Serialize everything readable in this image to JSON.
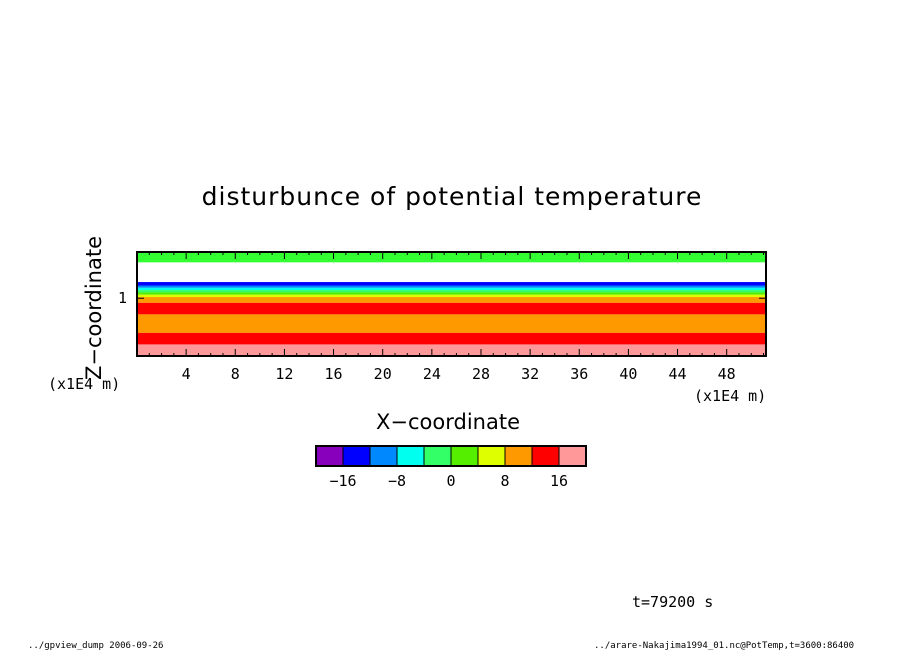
{
  "chart_data": {
    "type": "heatmap",
    "title": "disturbunce of potential temperature",
    "xlabel": "X−coordinate",
    "ylabel": "Z−coordinate",
    "x_unit": "(x1E4 m)",
    "y_unit": "(x1E4 m)",
    "xlim": [
      0,
      51.2
    ],
    "ylim": [
      0,
      1.8
    ],
    "x_ticks": [
      4,
      8,
      12,
      16,
      20,
      24,
      28,
      32,
      36,
      40,
      44,
      48
    ],
    "x_tick_labels": [
      "4",
      "8",
      "12",
      "16",
      "20",
      "24",
      "28",
      "32",
      "36",
      "40",
      "44",
      "48"
    ],
    "y_ticks": [
      1
    ],
    "y_tick_labels": [
      "1"
    ],
    "bands": [
      {
        "z0": 1.62,
        "z1": 1.8,
        "value": 4,
        "color": "#33ff33"
      },
      {
        "z0": 1.28,
        "z1": 1.62,
        "value": null,
        "color": "#ffffff"
      },
      {
        "z0": 1.22,
        "z1": 1.28,
        "value": -14,
        "color": "#0000ff"
      },
      {
        "z0": 1.18,
        "z1": 1.22,
        "value": -10,
        "color": "#0088ff"
      },
      {
        "z0": 1.14,
        "z1": 1.18,
        "value": -6,
        "color": "#00ffee"
      },
      {
        "z0": 1.1,
        "z1": 1.14,
        "value": 2,
        "color": "#33ff66"
      },
      {
        "z0": 1.06,
        "z1": 1.1,
        "value": 6,
        "color": "#55ee00"
      },
      {
        "z0": 1.02,
        "z1": 1.06,
        "value": 10,
        "color": "#ddff00"
      },
      {
        "z0": 0.92,
        "z1": 1.02,
        "value": 14,
        "color": "#ff9900"
      },
      {
        "z0": 0.72,
        "z1": 0.92,
        "value": 18,
        "color": "#ff0000"
      },
      {
        "z0": 0.4,
        "z1": 0.72,
        "value": 14,
        "color": "#ff9900"
      },
      {
        "z0": 0.2,
        "z1": 0.4,
        "value": 18,
        "color": "#ff0000"
      },
      {
        "z0": 0.0,
        "z1": 0.2,
        "value": 22,
        "color": "#ff9999"
      }
    ],
    "colorbar": {
      "colors": [
        "#8800bb",
        "#0000ff",
        "#0088ff",
        "#00ffee",
        "#33ff66",
        "#55ee00",
        "#ddff00",
        "#ff9900",
        "#ff0000",
        "#ff9999"
      ],
      "tick_labels": [
        "−16",
        "−8",
        "0",
        "8",
        "16"
      ],
      "tick_values": [
        -16,
        -8,
        0,
        8,
        16
      ],
      "range": [
        -20,
        20
      ]
    }
  },
  "annotations": {
    "timestamp": "t=79200 s",
    "footer_left": "../gpview_dump  2006-09-26",
    "footer_right": "../arare-Nakajima1994_01.nc@PotTemp,t=3600:86400"
  }
}
